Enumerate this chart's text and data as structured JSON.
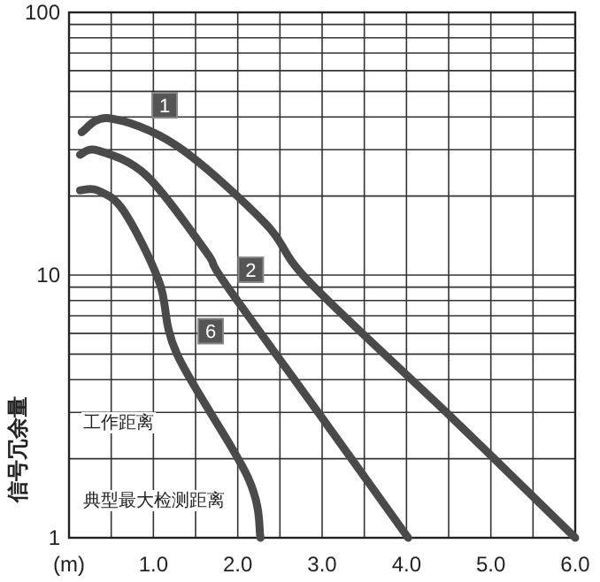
{
  "chart_data": {
    "type": "line",
    "ylabel": "信号冗余量",
    "log": "y",
    "grid": true,
    "marker": "none",
    "line_style": "solid",
    "xlim": [
      0,
      6
    ],
    "ylim": [
      1,
      100
    ],
    "xticks": [
      {
        "value": 0,
        "label": "(m)"
      },
      {
        "value": 0.5,
        "label": null
      },
      {
        "value": 1,
        "label": "1.0"
      },
      {
        "value": 1.5,
        "label": null
      },
      {
        "value": 2,
        "label": "2.0"
      },
      {
        "value": 2.5,
        "label": null
      },
      {
        "value": 3,
        "label": "3.0"
      },
      {
        "value": 3.5,
        "label": null
      },
      {
        "value": 4,
        "label": "4.0"
      },
      {
        "value": 4.5,
        "label": null
      },
      {
        "value": 5,
        "label": "5.0"
      },
      {
        "value": 5.5,
        "label": null
      },
      {
        "value": 6,
        "label": "6.0"
      }
    ],
    "yticks": [
      1,
      {
        "value": 2,
        "label": null
      },
      {
        "value": 3,
        "label": null
      },
      {
        "value": 4,
        "label": null
      },
      {
        "value": 5,
        "label": null
      },
      {
        "value": 6,
        "label": null
      },
      {
        "value": 7,
        "label": null
      },
      {
        "value": 8,
        "label": null
      },
      {
        "value": 9,
        "label": null
      },
      10,
      {
        "value": 20,
        "label": null
      },
      {
        "value": 30,
        "label": null
      },
      {
        "value": 40,
        "label": null
      },
      {
        "value": 50,
        "label": null
      },
      {
        "value": 60,
        "label": null
      },
      {
        "value": 70,
        "label": null
      },
      {
        "value": 80,
        "label": null
      },
      {
        "value": 90,
        "label": null
      },
      100
    ],
    "series": [
      {
        "name": "1",
        "color": "#4a4a4a",
        "x": [
          0.15,
          0.48,
          1.28,
          2.33,
          2.85,
          4.57,
          6.0
        ],
        "values": [
          35,
          39.5,
          31,
          15.7,
          9.4,
          2.8,
          1
        ]
      },
      {
        "name": "2",
        "color": "#4a4a4a",
        "x": [
          0.13,
          0.34,
          0.92,
          1.63,
          1.84,
          3.02,
          4.02
        ],
        "values": [
          28.7,
          29.8,
          23.9,
          12.2,
          9.4,
          2.8,
          1
        ]
      },
      {
        "name": "6",
        "color": "#4a4a4a",
        "x": [
          0.13,
          0.34,
          0.65,
          1.07,
          1.28,
          2.12,
          2.27
        ],
        "values": [
          21,
          21,
          17.5,
          9.4,
          5.0,
          1.7,
          1
        ]
      }
    ],
    "annotations": [
      "工作距离",
      "典型最大检测距离"
    ]
  }
}
